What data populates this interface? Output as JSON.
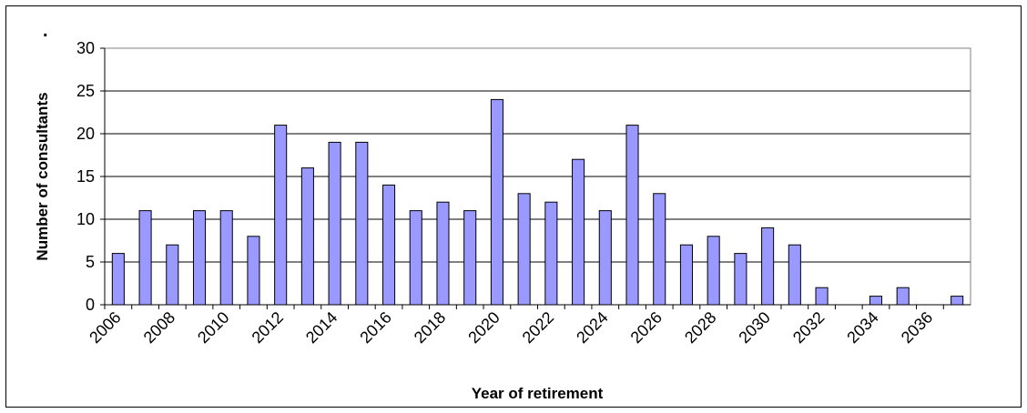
{
  "chart_data": {
    "type": "bar",
    "title": "",
    "corner_mark": ".",
    "xlabel": "Year of retirement",
    "ylabel": "Number of consultants",
    "ylim": [
      0,
      30
    ],
    "y_ticks": [
      "0",
      "5",
      "10",
      "15",
      "20",
      "25",
      "30"
    ],
    "grid": true,
    "legend": "none",
    "bar_color": "#9999ff",
    "bar_stroke": "#000000",
    "categories": [
      "2006",
      "2007",
      "2008",
      "2009",
      "2010",
      "2011",
      "2012",
      "2013",
      "2014",
      "2015",
      "2016",
      "2017",
      "2018",
      "2019",
      "2020",
      "2021",
      "2022",
      "2023",
      "2024",
      "2025",
      "2026",
      "2027",
      "2028",
      "2029",
      "2030",
      "2031",
      "2032",
      "2033",
      "2034",
      "2035",
      "2036",
      "2037"
    ],
    "x_tick_labels": [
      "2006",
      "2008",
      "2010",
      "2012",
      "2014",
      "2016",
      "2018",
      "2020",
      "2022",
      "2024",
      "2026",
      "2028",
      "2030",
      "2032",
      "2034",
      "2036"
    ],
    "values": [
      6,
      11,
      7,
      11,
      11,
      8,
      21,
      16,
      19,
      19,
      14,
      11,
      12,
      11,
      24,
      13,
      12,
      17,
      11,
      21,
      13,
      7,
      8,
      6,
      9,
      7,
      2,
      0,
      1,
      2,
      0,
      1
    ]
  }
}
